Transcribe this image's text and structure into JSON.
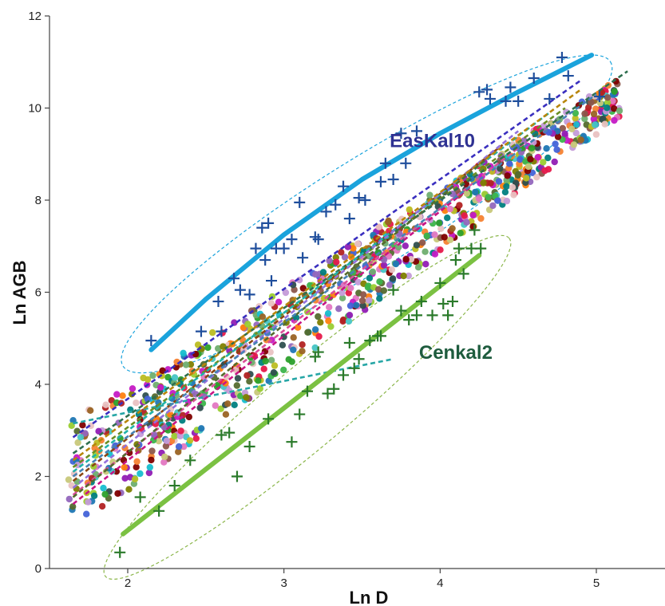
{
  "chart_data": {
    "type": "scatter",
    "xlabel": "Ln D",
    "ylabel": "Ln AGB",
    "xlim": [
      1.5,
      5.45
    ],
    "ylim": [
      0,
      12
    ],
    "xticks": [
      2,
      3,
      4,
      5
    ],
    "yticks": [
      0,
      2,
      4,
      6,
      8,
      10,
      12
    ],
    "grid": false,
    "annotations": [
      {
        "text": "EasKal10",
        "x": 3.95,
        "y": 9.15,
        "color": "#2e3192"
      },
      {
        "text": "Cenkal2",
        "x": 4.1,
        "y": 4.55,
        "color": "#1e5c3e"
      }
    ],
    "series": [
      {
        "color": "#1f4e9c",
        "marker": "plus",
        "points": [
          [
            2.15,
            4.95
          ],
          [
            2.47,
            5.15
          ],
          [
            2.58,
            5.8
          ],
          [
            2.6,
            5.15
          ],
          [
            2.68,
            6.3
          ],
          [
            2.72,
            6.05
          ],
          [
            2.78,
            5.95
          ],
          [
            2.82,
            6.95
          ],
          [
            2.86,
            7.4
          ],
          [
            2.9,
            7.5
          ],
          [
            2.88,
            6.7
          ],
          [
            2.92,
            6.25
          ],
          [
            2.95,
            6.95
          ],
          [
            3.0,
            6.95
          ],
          [
            3.05,
            7.15
          ],
          [
            3.1,
            7.95
          ],
          [
            3.12,
            6.75
          ],
          [
            3.2,
            7.2
          ],
          [
            3.22,
            7.15
          ],
          [
            3.27,
            7.75
          ],
          [
            3.33,
            7.9
          ],
          [
            3.38,
            8.3
          ],
          [
            3.42,
            7.6
          ],
          [
            3.48,
            8.05
          ],
          [
            3.52,
            8.0
          ],
          [
            3.62,
            8.4
          ],
          [
            3.65,
            8.8
          ],
          [
            3.7,
            8.45
          ],
          [
            3.75,
            9.45
          ],
          [
            3.78,
            8.8
          ],
          [
            3.85,
            9.5
          ],
          [
            4.25,
            10.35
          ],
          [
            4.3,
            10.4
          ],
          [
            4.32,
            10.2
          ],
          [
            4.42,
            10.15
          ],
          [
            4.45,
            10.45
          ],
          [
            4.5,
            10.15
          ],
          [
            4.6,
            10.65
          ],
          [
            4.7,
            10.2
          ],
          [
            4.78,
            11.1
          ],
          [
            4.82,
            10.7
          ],
          [
            5.02,
            10.25
          ]
        ]
      },
      {
        "color": "#2a7a2a",
        "marker": "plus",
        "points": [
          [
            1.95,
            0.35
          ],
          [
            2.08,
            1.55
          ],
          [
            2.2,
            1.25
          ],
          [
            2.3,
            1.8
          ],
          [
            2.4,
            2.35
          ],
          [
            2.6,
            2.9
          ],
          [
            2.65,
            2.95
          ],
          [
            2.7,
            2.0
          ],
          [
            2.78,
            2.65
          ],
          [
            2.9,
            3.25
          ],
          [
            3.05,
            2.75
          ],
          [
            3.1,
            3.35
          ],
          [
            3.15,
            3.85
          ],
          [
            3.2,
            4.6
          ],
          [
            3.22,
            4.7
          ],
          [
            3.28,
            3.8
          ],
          [
            3.32,
            3.9
          ],
          [
            3.38,
            4.2
          ],
          [
            3.42,
            4.9
          ],
          [
            3.45,
            4.35
          ],
          [
            3.48,
            4.55
          ],
          [
            3.55,
            4.95
          ],
          [
            3.6,
            5.05
          ],
          [
            3.62,
            5.05
          ],
          [
            3.7,
            6.05
          ],
          [
            3.75,
            5.6
          ],
          [
            3.8,
            5.4
          ],
          [
            3.85,
            5.5
          ],
          [
            3.88,
            5.8
          ],
          [
            3.95,
            5.5
          ],
          [
            4.0,
            6.2
          ],
          [
            4.02,
            5.75
          ],
          [
            4.05,
            5.5
          ],
          [
            4.08,
            5.8
          ],
          [
            4.1,
            6.7
          ],
          [
            4.12,
            6.95
          ],
          [
            4.15,
            6.4
          ],
          [
            4.2,
            6.95
          ],
          [
            4.22,
            7.35
          ],
          [
            4.26,
            6.95
          ]
        ]
      }
    ],
    "fit_lines": [
      {
        "color": "#1aa3dc",
        "points": [
          [
            2.15,
            4.75
          ],
          [
            2.5,
            5.85
          ],
          [
            3.0,
            7.25
          ],
          [
            3.5,
            8.45
          ],
          [
            4.0,
            9.45
          ],
          [
            4.5,
            10.35
          ],
          [
            4.97,
            11.15
          ]
        ]
      },
      {
        "color": "#7bc142",
        "points": [
          [
            1.97,
            0.75
          ],
          [
            4.25,
            6.8
          ]
        ]
      }
    ],
    "ellipses": [
      {
        "color": "#1aa3dc",
        "cx": 3.53,
        "cy": 7.7,
        "angle_deg": 32,
        "rx_px": 360,
        "ry_px": 68
      },
      {
        "color": "#8bb64a",
        "cx": 3.15,
        "cy": 3.5,
        "angle_deg": 40,
        "rx_px": 330,
        "ry_px": 50
      }
    ],
    "cloud": {
      "description_colors": [
        "#e6194b",
        "#3cb44b",
        "#4363d8",
        "#f58231",
        "#911eb4",
        "#46c5c5",
        "#c51ac5",
        "#9acd32",
        "#e9c2c2",
        "#008080",
        "#c49bd8",
        "#9a6324",
        "#c8c87a",
        "#800000",
        "#6fae6f",
        "#808000",
        "#1f77b4",
        "#ff7f0e",
        "#2ca02c",
        "#9467bd",
        "#8c564b",
        "#e377c2",
        "#17becf",
        "#bcbd22",
        "#2f4f4f",
        "#556b2f",
        "#b22222"
      ],
      "dashed_lines": [
        {
          "color": "#3a2fbf",
          "points": [
            [
              1.65,
              2.85
            ],
            [
              4.9,
              10.6
            ]
          ]
        },
        {
          "color": "#26a6a6",
          "points": [
            [
              1.65,
              3.15
            ],
            [
              3.7,
              4.55
            ]
          ]
        },
        {
          "color": "#d94f9a",
          "points": [
            [
              1.65,
              1.6
            ],
            [
              4.6,
              9.4
            ]
          ]
        },
        {
          "color": "#6b8e23",
          "points": [
            [
              1.65,
              2.2
            ],
            [
              4.8,
              10.0
            ]
          ]
        },
        {
          "color": "#8b4513",
          "points": [
            [
              1.65,
              1.9
            ],
            [
              4.4,
              9.2
            ]
          ]
        },
        {
          "color": "#2f6f4f",
          "points": [
            [
              1.65,
              2.5
            ],
            [
              5.2,
              10.8
            ]
          ]
        },
        {
          "color": "#c71585",
          "points": [
            [
              1.65,
              1.4
            ],
            [
              4.2,
              8.3
            ]
          ]
        },
        {
          "color": "#20b2aa",
          "points": [
            [
              1.65,
              2.1
            ],
            [
              4.7,
              9.9
            ]
          ]
        },
        {
          "color": "#9370db",
          "points": [
            [
              1.65,
              1.75
            ],
            [
              4.5,
              9.5
            ]
          ]
        },
        {
          "color": "#b8860b",
          "points": [
            [
              1.65,
              2.35
            ],
            [
              4.9,
              10.4
            ]
          ]
        },
        {
          "color": "#556b2f",
          "points": [
            [
              1.65,
              1.55
            ],
            [
              4.3,
              8.9
            ]
          ]
        },
        {
          "color": "#4682b4",
          "points": [
            [
              1.65,
              2.0
            ],
            [
              5.0,
              10.3
            ]
          ]
        }
      ]
    }
  }
}
